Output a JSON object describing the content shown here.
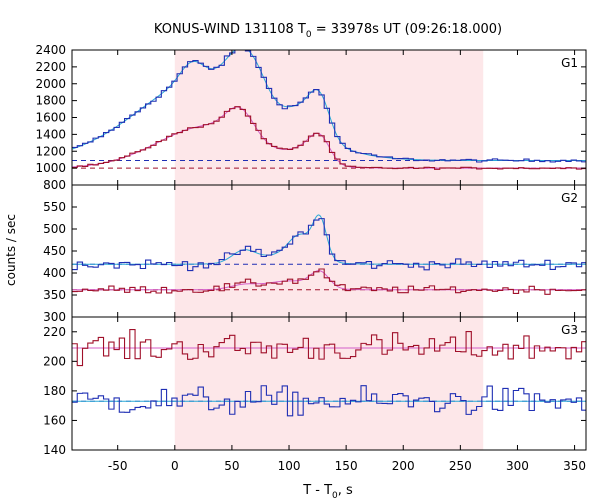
{
  "title": {
    "prefix": "KONUS-WIND 131108 T",
    "sub": "0",
    "suffix": " = 33978s UT (09:26:18.000)"
  },
  "xlabel": {
    "main": "T - T",
    "sub": "0",
    "unit": ", s"
  },
  "ylabel": "counts / sec",
  "colors": {
    "blue": "#1f2fb4",
    "red": "#a0102a",
    "cyan": "#2aa9d6",
    "pink": "#d45fc9",
    "shade": "#fde7e9",
    "dash_blue": "#1f2fb4",
    "dash_red": "#a0102a"
  },
  "chart_data": {
    "type": "line",
    "x_range": [
      -90,
      360
    ],
    "x_ticks": [
      -50,
      0,
      50,
      100,
      150,
      200,
      250,
      300,
      350
    ],
    "shaded_interval": [
      0,
      270
    ],
    "bin_width": 4.6,
    "panels": [
      {
        "name": "G1",
        "ylim": [
          800,
          2400
        ],
        "yticks": [
          800,
          1000,
          1200,
          1400,
          1600,
          1800,
          2000,
          2200,
          2400
        ],
        "series": [
          {
            "color_key": "blue",
            "background": 1090,
            "noise": 12,
            "peaks": [
              [
                30,
                60,
                1000
              ],
              [
                15,
                10,
                200
              ],
              [
                57,
                12,
                370
              ],
              [
                72,
                10,
                200
              ],
              [
                127,
                9,
                450
              ],
              [
                112,
                12,
                200
              ]
            ],
            "model_color": "cyan"
          },
          {
            "color_key": "red",
            "background": 1000,
            "noise": 8,
            "peaks": [
              [
                30,
                45,
                500
              ],
              [
                57,
                12,
                300
              ],
              [
                127,
                9,
                300
              ],
              [
                112,
                12,
                120
              ]
            ],
            "model_color": "pink"
          }
        ]
      },
      {
        "name": "G2",
        "ylim": [
          300,
          600
        ],
        "yticks": [
          300,
          350,
          400,
          450,
          500,
          550
        ],
        "series": [
          {
            "color_key": "blue",
            "background": 420,
            "noise": 8,
            "peaks": [
              [
                60,
                10,
                25
              ],
              [
                110,
                10,
                50
              ],
              [
                127,
                6,
                90
              ],
              [
                95,
                25,
                20
              ]
            ],
            "model_color": "cyan"
          },
          {
            "color_key": "red",
            "background": 362,
            "noise": 6,
            "peaks": [
              [
                127,
                8,
                35
              ],
              [
                100,
                20,
                20
              ],
              [
                60,
                12,
                10
              ]
            ],
            "model_color": "pink"
          }
        ]
      },
      {
        "name": "G3",
        "ylim": [
          140,
          230
        ],
        "yticks": [
          140,
          160,
          180,
          200,
          220
        ],
        "series": [
          {
            "color_key": "red",
            "background": 209,
            "noise": 7,
            "peaks": [],
            "model_color": "pink"
          },
          {
            "color_key": "blue",
            "background": 173,
            "noise": 7,
            "peaks": [],
            "model_color": "cyan"
          }
        ]
      }
    ]
  }
}
